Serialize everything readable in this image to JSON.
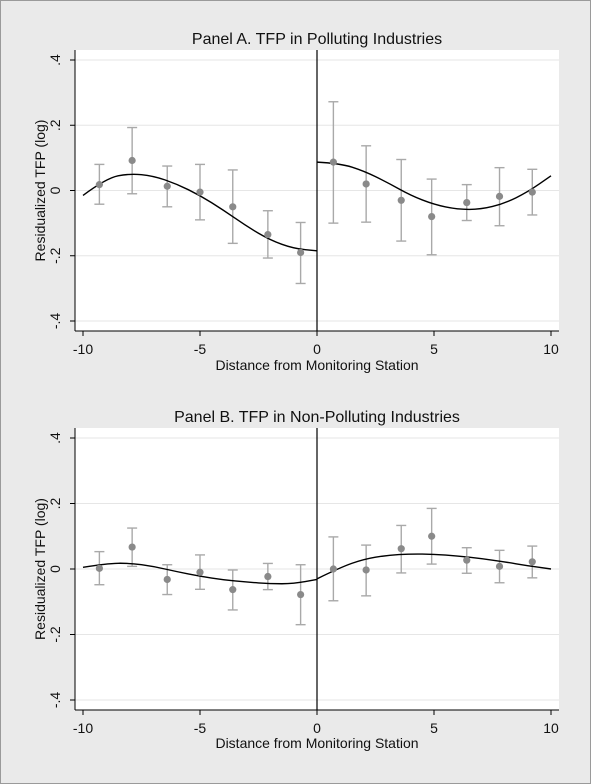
{
  "chart_data": [
    {
      "type": "scatter",
      "title": "Panel A. TFP in Polluting Industries",
      "xlabel": "Distance from Monitoring Station",
      "ylabel": "Residualized TFP (log)",
      "xlim": [
        -10,
        10
      ],
      "ylim": [
        -0.4,
        0.4
      ],
      "xticks": [
        "-10",
        "-5",
        "0",
        "5",
        "10"
      ],
      "yticks": [
        ".4",
        ".2",
        "0",
        "-.2",
        "-.4"
      ],
      "ytick_values": [
        0.4,
        0.2,
        0,
        -0.2,
        -0.4
      ],
      "xtick_values": [
        -10,
        -5,
        0,
        5,
        10
      ],
      "grid": true,
      "cutoff": 0,
      "points": [
        {
          "x": -9.3,
          "y": 0.018,
          "lo": -0.042,
          "hi": 0.08
        },
        {
          "x": -7.9,
          "y": 0.092,
          "lo": -0.01,
          "hi": 0.193
        },
        {
          "x": -6.4,
          "y": 0.013,
          "lo": -0.05,
          "hi": 0.075
        },
        {
          "x": -5.0,
          "y": -0.005,
          "lo": -0.09,
          "hi": 0.08
        },
        {
          "x": -3.6,
          "y": -0.05,
          "lo": -0.162,
          "hi": 0.063
        },
        {
          "x": -2.1,
          "y": -0.135,
          "lo": -0.207,
          "hi": -0.062
        },
        {
          "x": -0.7,
          "y": -0.19,
          "lo": -0.285,
          "hi": -0.098
        },
        {
          "x": 0.7,
          "y": 0.087,
          "lo": -0.1,
          "hi": 0.272
        },
        {
          "x": 2.1,
          "y": 0.02,
          "lo": -0.097,
          "hi": 0.137
        },
        {
          "x": 3.6,
          "y": -0.03,
          "lo": -0.155,
          "hi": 0.095
        },
        {
          "x": 4.9,
          "y": -0.08,
          "lo": -0.197,
          "hi": 0.035
        },
        {
          "x": 6.4,
          "y": -0.037,
          "lo": -0.092,
          "hi": 0.018
        },
        {
          "x": 7.8,
          "y": -0.018,
          "lo": -0.108,
          "hi": 0.07
        },
        {
          "x": 9.2,
          "y": -0.005,
          "lo": -0.075,
          "hi": 0.065
        }
      ],
      "fit_left": {
        "x": [
          -10,
          -9,
          -8,
          -7,
          -6,
          -5,
          -4,
          -3,
          -2,
          -1,
          0
        ],
        "y": [
          -0.015,
          0.038,
          0.052,
          0.045,
          0.02,
          -0.015,
          -0.06,
          -0.11,
          -0.152,
          -0.178,
          -0.185
        ]
      },
      "fit_right": {
        "x": [
          0,
          1,
          2,
          3,
          4,
          5,
          6,
          7,
          8,
          9,
          10
        ],
        "y": [
          0.087,
          0.083,
          0.06,
          0.025,
          -0.015,
          -0.043,
          -0.058,
          -0.058,
          -0.04,
          -0.005,
          0.045
        ]
      }
    },
    {
      "type": "scatter",
      "title": "Panel B. TFP in Non-Polluting Industries",
      "xlabel": "Distance from Monitoring Station",
      "ylabel": "Residualized TFP (log)",
      "xlim": [
        -10,
        10
      ],
      "ylim": [
        -0.4,
        0.4
      ],
      "xticks": [
        "-10",
        "-5",
        "0",
        "5",
        "10"
      ],
      "yticks": [
        ".4",
        ".2",
        "0",
        "-.2",
        "-.4"
      ],
      "ytick_values": [
        0.4,
        0.2,
        0,
        -0.2,
        -0.4
      ],
      "xtick_values": [
        -10,
        -5,
        0,
        5,
        10
      ],
      "grid": true,
      "cutoff": 0,
      "points": [
        {
          "x": -9.3,
          "y": 0.002,
          "lo": -0.048,
          "hi": 0.053
        },
        {
          "x": -7.9,
          "y": 0.067,
          "lo": 0.008,
          "hi": 0.125
        },
        {
          "x": -6.4,
          "y": -0.032,
          "lo": -0.078,
          "hi": 0.013
        },
        {
          "x": -5.0,
          "y": -0.01,
          "lo": -0.062,
          "hi": 0.043
        },
        {
          "x": -3.6,
          "y": -0.063,
          "lo": -0.125,
          "hi": -0.003
        },
        {
          "x": -2.1,
          "y": -0.023,
          "lo": -0.063,
          "hi": 0.017
        },
        {
          "x": -0.7,
          "y": -0.078,
          "lo": -0.17,
          "hi": 0.013
        },
        {
          "x": 0.7,
          "y": 0.0,
          "lo": -0.097,
          "hi": 0.098
        },
        {
          "x": 2.1,
          "y": -0.003,
          "lo": -0.082,
          "hi": 0.073
        },
        {
          "x": 3.6,
          "y": 0.062,
          "lo": -0.012,
          "hi": 0.133
        },
        {
          "x": 4.9,
          "y": 0.1,
          "lo": 0.015,
          "hi": 0.185
        },
        {
          "x": 6.4,
          "y": 0.027,
          "lo": -0.013,
          "hi": 0.065
        },
        {
          "x": 7.8,
          "y": 0.008,
          "lo": -0.042,
          "hi": 0.057
        },
        {
          "x": 9.2,
          "y": 0.022,
          "lo": -0.027,
          "hi": 0.07
        }
      ],
      "fit_left": {
        "x": [
          -10,
          -9,
          -8,
          -7,
          -6,
          -5,
          -4,
          -3,
          -2,
          -1,
          0
        ],
        "y": [
          0.005,
          0.017,
          0.018,
          0.008,
          -0.008,
          -0.022,
          -0.033,
          -0.04,
          -0.045,
          -0.045,
          -0.032
        ]
      },
      "fit_right": {
        "x": [
          0,
          1,
          2,
          3,
          4,
          5,
          6,
          7,
          8,
          9,
          10
        ],
        "y": [
          -0.03,
          0.005,
          0.03,
          0.042,
          0.046,
          0.045,
          0.04,
          0.032,
          0.022,
          0.01,
          0.0
        ]
      }
    }
  ],
  "colors": {
    "background": "#eaeaea",
    "plot_region": "#ffffff",
    "grid": "#e6e6e6",
    "axis": "#000000",
    "marker": "#8a8a8a",
    "ci": "#a9a9a9",
    "fit": "#000000",
    "frame": "#9a9a9a"
  }
}
